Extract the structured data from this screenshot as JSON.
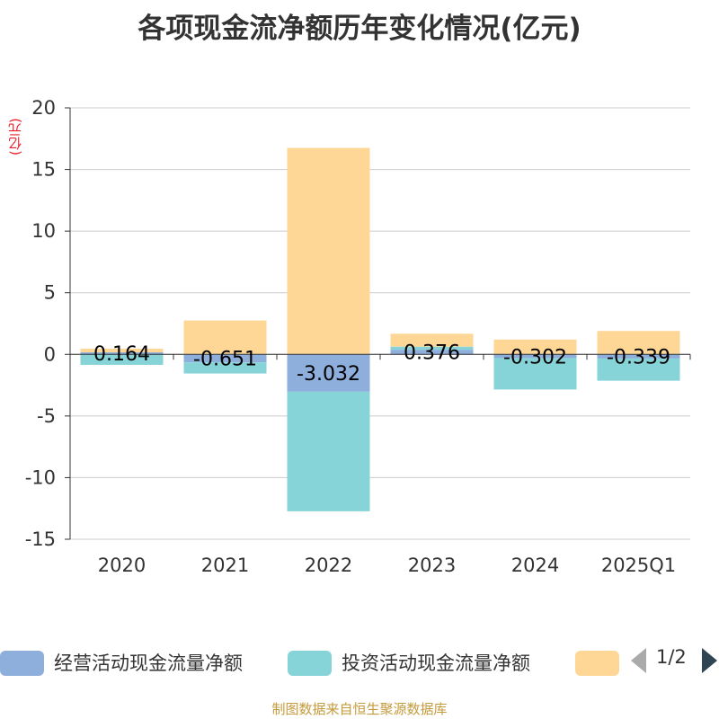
{
  "chart_data": {
    "type": "bar",
    "title": "各项现金流净额历年变化情况(亿元)",
    "ylabel": "(亿元)",
    "categories": [
      "2020",
      "2021",
      "2022",
      "2023",
      "2024",
      "2025Q1"
    ],
    "ylim": [
      -15,
      20
    ],
    "yticks": [
      20,
      15,
      10,
      5,
      0,
      -5,
      -10,
      -15
    ],
    "stacked": true,
    "grid": true,
    "series": [
      {
        "name": "经营活动现金流量净额",
        "color": "#8eaedc",
        "values": [
          0.164,
          -0.651,
          -3.032,
          0.376,
          -0.302,
          -0.339
        ],
        "labels": [
          "0.164",
          "-0.651",
          "-3.032",
          "0.376",
          "-0.302",
          "-0.339"
        ]
      },
      {
        "name": "投资活动现金流量净额",
        "color": "#86d4d8",
        "values": [
          -0.85,
          -0.9,
          -9.7,
          0.25,
          -2.55,
          -1.8
        ]
      },
      {
        "name": "",
        "color": "#fed797",
        "values": [
          0.3,
          2.75,
          16.75,
          1.05,
          1.2,
          1.9
        ]
      }
    ],
    "legend_position": "bottom"
  },
  "legend_pager": "1/2",
  "footer": "制图数据来自恒生聚源数据库"
}
